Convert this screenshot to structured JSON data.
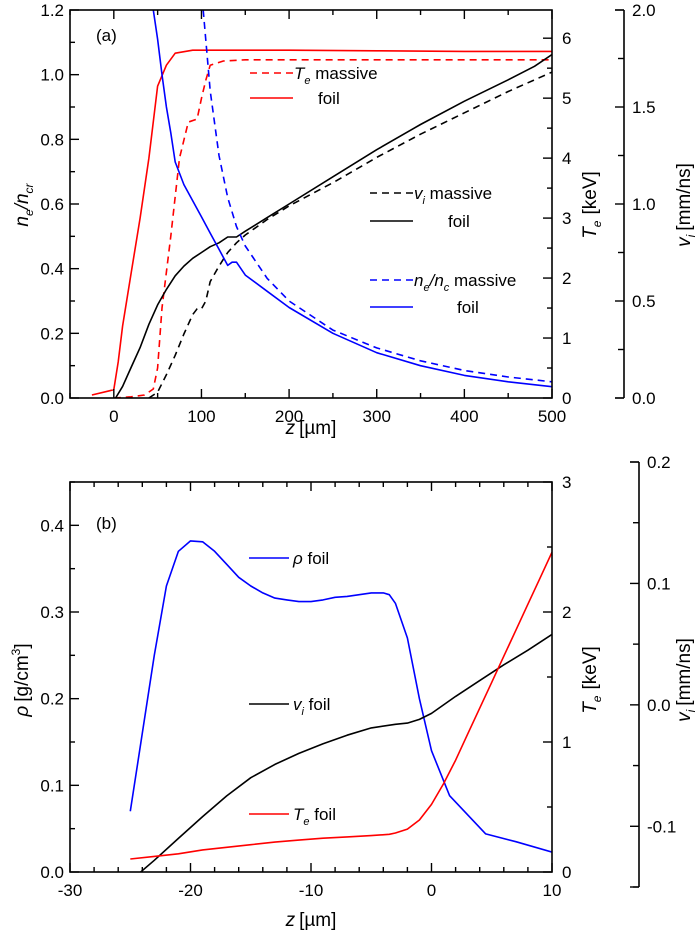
{
  "chart_data": [
    {
      "type": "line",
      "panel_label": "(a)",
      "xlabel": "z [µm]",
      "xlim": [
        -50,
        500
      ],
      "xticks": [
        0,
        100,
        200,
        300,
        400,
        500
      ],
      "axes": {
        "left": {
          "label_main": "n",
          "label_sub1": "e",
          "label_sep": "/n",
          "label_sub2": "cr",
          "ylim": [
            0.0,
            1.2
          ],
          "ticks": [
            "0.0",
            "0.2",
            "0.4",
            "0.6",
            "0.8",
            "1.0",
            "1.2"
          ]
        },
        "right1": {
          "label_main": "T",
          "label_sub": "e",
          "label_unit": "[keV]",
          "ylim": [
            0,
            6.47
          ],
          "ticks": [
            "0",
            "1",
            "2",
            "3",
            "4",
            "5",
            "6"
          ]
        },
        "right2": {
          "label_main": "v",
          "label_sub": "i",
          "label_unit": "[mm/ns]",
          "ylim": [
            0.0,
            2.0
          ],
          "ticks": [
            "0.0",
            "0.5",
            "1.0",
            "1.5",
            "2.0"
          ]
        }
      },
      "series": [
        {
          "name": "Te massive",
          "axis": "right1",
          "color": "#ff0000",
          "dash": true,
          "x": [
            0,
            20,
            35,
            45,
            50,
            55,
            65,
            75,
            85,
            95,
            100,
            105,
            110,
            125,
            150,
            200,
            300,
            400,
            500
          ],
          "y": [
            0.0,
            0.02,
            0.05,
            0.15,
            0.5,
            1.5,
            2.7,
            4.0,
            4.6,
            4.65,
            5.0,
            5.3,
            5.55,
            5.62,
            5.64,
            5.64,
            5.64,
            5.64,
            5.64
          ]
        },
        {
          "name": "Te foil",
          "axis": "right1",
          "color": "#ff0000",
          "dash": false,
          "x": [
            -25,
            -5,
            0,
            5,
            10,
            20,
            30,
            40,
            50,
            60,
            70,
            90,
            100,
            200,
            300,
            400,
            500
          ],
          "y": [
            0.05,
            0.12,
            0.14,
            0.6,
            1.2,
            2.1,
            3.0,
            4.0,
            5.2,
            5.55,
            5.75,
            5.8,
            5.8,
            5.8,
            5.79,
            5.78,
            5.78
          ]
        },
        {
          "name": "vi massive",
          "axis": "right2",
          "color": "#000000",
          "dash": true,
          "x": [
            40,
            50,
            60,
            70,
            80,
            90,
            95,
            100,
            105,
            110,
            120,
            130,
            140,
            150,
            175,
            200,
            250,
            300,
            350,
            400,
            450,
            500
          ],
          "y": [
            0.0,
            0.03,
            0.12,
            0.22,
            0.33,
            0.43,
            0.46,
            0.46,
            0.5,
            0.6,
            0.68,
            0.75,
            0.8,
            0.84,
            0.92,
            0.99,
            1.11,
            1.24,
            1.36,
            1.47,
            1.58,
            1.68
          ]
        },
        {
          "name": "vi foil",
          "axis": "right2",
          "color": "#000000",
          "dash": false,
          "x": [
            2,
            10,
            20,
            30,
            40,
            50,
            60,
            70,
            80,
            90,
            100,
            110,
            120,
            130,
            140,
            150,
            175,
            200,
            250,
            300,
            350,
            400,
            450,
            480,
            500
          ],
          "y": [
            0.0,
            0.06,
            0.16,
            0.26,
            0.38,
            0.48,
            0.56,
            0.63,
            0.68,
            0.72,
            0.75,
            0.78,
            0.8,
            0.83,
            0.83,
            0.86,
            0.93,
            1.0,
            1.14,
            1.28,
            1.41,
            1.53,
            1.64,
            1.71,
            1.77
          ]
        },
        {
          "name": "ne/nc massive",
          "axis": "left",
          "color": "#0000ff",
          "dash": true,
          "x": [
            102,
            110,
            120,
            130,
            140,
            150,
            175,
            200,
            250,
            300,
            350,
            400,
            450,
            500
          ],
          "y": [
            1.2,
            0.95,
            0.75,
            0.62,
            0.53,
            0.47,
            0.37,
            0.3,
            0.21,
            0.155,
            0.115,
            0.085,
            0.065,
            0.05
          ]
        },
        {
          "name": "ne/nc foil",
          "axis": "left",
          "color": "#0000ff",
          "dash": false,
          "x": [
            45,
            50,
            55,
            60,
            65,
            70,
            80,
            90,
            100,
            110,
            120,
            130,
            135,
            140,
            150,
            175,
            200,
            250,
            300,
            350,
            400,
            450,
            500
          ],
          "y": [
            1.2,
            1.11,
            1.0,
            0.9,
            0.82,
            0.73,
            0.66,
            0.61,
            0.56,
            0.51,
            0.46,
            0.41,
            0.42,
            0.42,
            0.38,
            0.33,
            0.28,
            0.2,
            0.14,
            0.1,
            0.07,
            0.05,
            0.035
          ]
        }
      ],
      "legend": [
        {
          "series": "Te massive",
          "main": "T",
          "sub": "e",
          "rest": " massive"
        },
        {
          "series": "Te foil",
          "main": "",
          "sub": "",
          "rest": "foil"
        },
        {
          "series": "vi massive",
          "main": "v",
          "sub": "i",
          "rest": " massive"
        },
        {
          "series": "vi foil",
          "main": "",
          "sub": "",
          "rest": "foil"
        },
        {
          "series": "ne/nc massive",
          "main": "n",
          "sub": "e",
          "mid": "/n",
          "sub2": "c",
          "rest": " massive"
        },
        {
          "series": "ne/nc foil",
          "main": "",
          "sub": "",
          "rest": "foil"
        }
      ]
    },
    {
      "type": "line",
      "panel_label": "(b)",
      "xlabel": "z [µm]",
      "xlim": [
        -30,
        10
      ],
      "xticks": [
        -30,
        -20,
        -10,
        0,
        10
      ],
      "axes": {
        "left": {
          "label_main": "ρ",
          "label_unit": "[g/cm",
          "label_sup": "3",
          "label_end": "]",
          "ylim": [
            0.0,
            0.45
          ],
          "ticks": [
            "0.0",
            "0.1",
            "0.2",
            "0.3",
            "0.4"
          ]
        },
        "right1": {
          "label_main": "T",
          "label_sub": "e",
          "label_unit": "[keV]",
          "ylim": [
            0,
            3
          ],
          "ticks": [
            "0",
            "1",
            "2",
            "3"
          ]
        },
        "right2": {
          "label_main": "v",
          "label_sub": "i",
          "label_unit": "[mm/ns]",
          "ylim": [
            -0.15,
            0.2
          ],
          "ticks": [
            "-0.1",
            "0.0",
            "0.1",
            "0.2"
          ]
        }
      },
      "series": [
        {
          "name": "rho foil",
          "axis": "left",
          "color": "#0000ff",
          "dash": false,
          "x": [
            -25,
            -24,
            -23,
            -22,
            -21,
            -20,
            -19,
            -18,
            -17,
            -16,
            -15,
            -14,
            -13,
            -12,
            -11,
            -10,
            -9,
            -8,
            -7,
            -6,
            -5,
            -4,
            -3.5,
            -3,
            -2,
            -1,
            0,
            1.5,
            4.5,
            7,
            10
          ],
          "y": [
            0.07,
            0.16,
            0.25,
            0.33,
            0.37,
            0.382,
            0.381,
            0.37,
            0.355,
            0.34,
            0.33,
            0.322,
            0.316,
            0.314,
            0.312,
            0.312,
            0.314,
            0.317,
            0.318,
            0.32,
            0.322,
            0.322,
            0.32,
            0.31,
            0.27,
            0.2,
            0.14,
            0.088,
            0.044,
            0.035,
            0.023
          ]
        },
        {
          "name": "vi foil",
          "axis": "right2",
          "color": "#000000",
          "dash": false,
          "x": [
            -25,
            -23,
            -21,
            -19,
            -17,
            -15,
            -13,
            -11,
            -9,
            -7,
            -5,
            -3,
            -2,
            -1,
            0,
            2,
            4,
            6,
            8,
            10
          ],
          "y": [
            -0.145,
            -0.128,
            -0.11,
            -0.092,
            -0.075,
            -0.06,
            -0.049,
            -0.04,
            -0.032,
            -0.025,
            -0.019,
            -0.016,
            -0.015,
            -0.012,
            -0.007,
            0.007,
            0.02,
            0.033,
            0.045,
            0.058
          ]
        },
        {
          "name": "Te foil",
          "axis": "right1",
          "color": "#ff0000",
          "dash": false,
          "x": [
            -25,
            -23,
            -21,
            -19,
            -17,
            -15,
            -13,
            -11,
            -9,
            -7,
            -5,
            -3.5,
            -3,
            -2,
            -1,
            0,
            1,
            2,
            3,
            4,
            5,
            6,
            7,
            8,
            9,
            10
          ],
          "y": [
            0.1,
            0.12,
            0.14,
            0.17,
            0.19,
            0.21,
            0.23,
            0.245,
            0.26,
            0.27,
            0.28,
            0.29,
            0.3,
            0.33,
            0.4,
            0.52,
            0.68,
            0.86,
            1.06,
            1.26,
            1.46,
            1.66,
            1.86,
            2.06,
            2.26,
            2.46
          ]
        }
      ],
      "legend": [
        {
          "series": "rho foil",
          "main": "ρ",
          "sub": "",
          "rest": " foil"
        },
        {
          "series": "vi foil",
          "main": "v",
          "sub": "i",
          "rest": " foil"
        },
        {
          "series": "Te foil",
          "main": "T",
          "sub": "e",
          "rest": " foil"
        }
      ]
    }
  ]
}
